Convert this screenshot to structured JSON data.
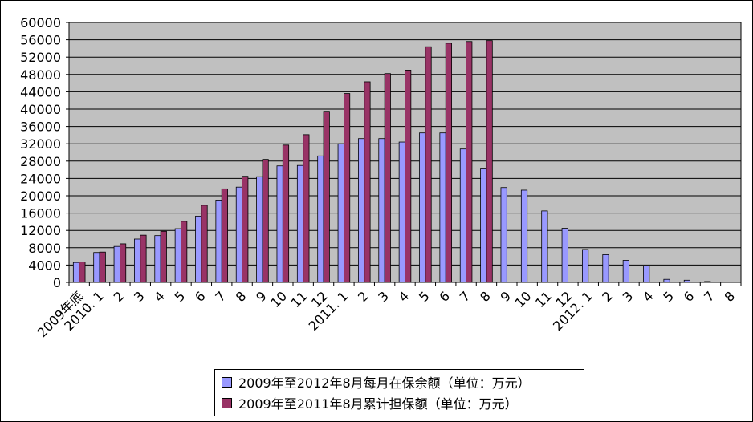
{
  "chart_data": {
    "type": "bar",
    "categories": [
      "2009年底",
      "2010. 1",
      "2",
      "3",
      "4",
      "5",
      "6",
      "7",
      "8",
      "9",
      "10",
      "11",
      "12",
      "2011. 1",
      "2",
      "3",
      "4",
      "5",
      "6",
      "7",
      "8",
      "9",
      "10",
      "11",
      "12",
      "2012. 1",
      "2",
      "3",
      "4",
      "5",
      "6",
      "7",
      "8"
    ],
    "series": [
      {
        "name": "2009年至2012年8月每月在保余额（单位：万元）",
        "color": "#9999ff",
        "values": [
          4600,
          6900,
          8300,
          10000,
          10800,
          12400,
          15300,
          19000,
          22000,
          24400,
          26900,
          27000,
          29200,
          32000,
          33200,
          33200,
          32400,
          34500,
          34500,
          30800,
          26200,
          21900,
          21300,
          16500,
          12500,
          7600,
          6400,
          5100,
          3800,
          700,
          500,
          200,
          0
        ]
      },
      {
        "name": "2009年至2011年8月累计担保额（单位：万元）",
        "color": "#993366",
        "values": [
          4700,
          7000,
          8900,
          10900,
          11800,
          14100,
          17800,
          21600,
          24500,
          28400,
          31700,
          34100,
          39500,
          43600,
          46300,
          48200,
          49000,
          54400,
          55200,
          55600,
          55800,
          null,
          null,
          null,
          null,
          null,
          null,
          null,
          null,
          null,
          null,
          null,
          null
        ]
      }
    ],
    "title": "",
    "xlabel": "",
    "ylabel": "",
    "ylim": [
      0,
      60000
    ],
    "yticks": [
      0,
      4000,
      8000,
      12000,
      16000,
      20000,
      24000,
      28000,
      32000,
      36000,
      40000,
      44000,
      48000,
      52000,
      56000,
      60000
    ],
    "grid": true,
    "legend_position": "bottom-center",
    "plot_background": "#c0c0c0"
  }
}
